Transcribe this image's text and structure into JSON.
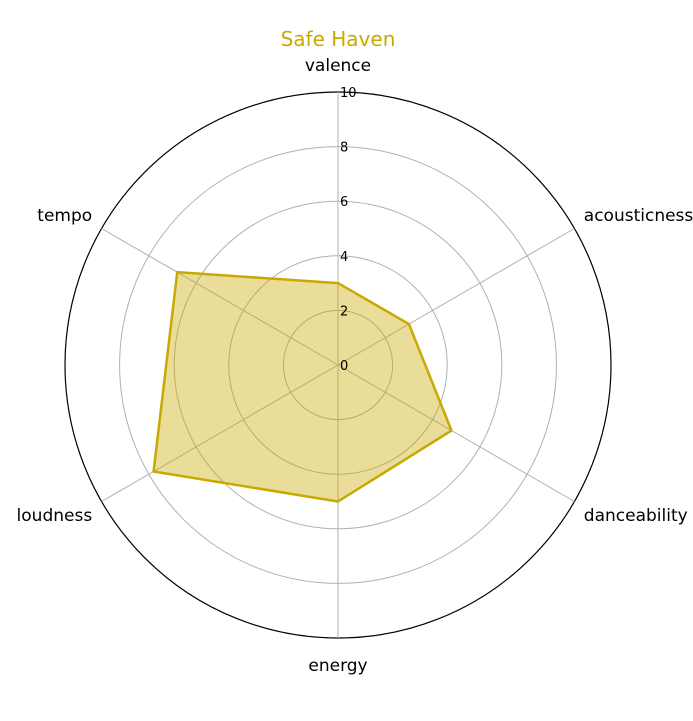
{
  "chart_data": {
    "type": "radar",
    "title": "Safe Haven",
    "axes": [
      "valence",
      "acousticness",
      "danceability",
      "energy",
      "loudness",
      "tempo"
    ],
    "series": [
      {
        "values": [
          3.0,
          3.0,
          4.8,
          5.0,
          7.8,
          6.8
        ]
      }
    ],
    "rlim": [
      0,
      10
    ],
    "ticks": [
      "0",
      "2",
      "4",
      "6",
      "8",
      "10"
    ],
    "grid": true,
    "color": "#c9a900"
  }
}
